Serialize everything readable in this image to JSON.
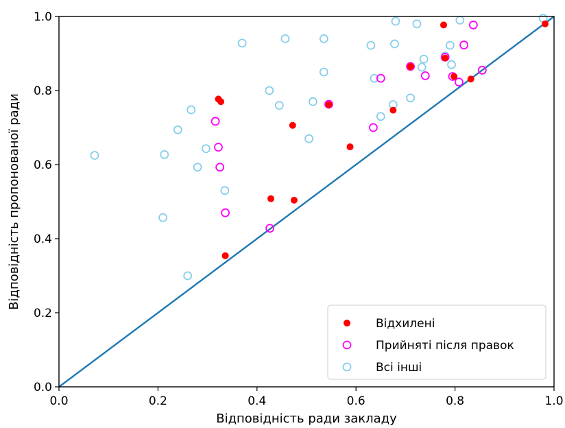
{
  "chart_data": {
    "type": "scatter",
    "title": "",
    "xlabel": "Відповідність ради закладу",
    "ylabel": "Відповідність пропонованої ради",
    "xlim": [
      0.0,
      1.0
    ],
    "ylim": [
      0.0,
      1.0
    ],
    "xticks": [
      "0.0",
      "0.2",
      "0.4",
      "0.6",
      "0.8",
      "1.0"
    ],
    "yticks": [
      "0.0",
      "0.2",
      "0.4",
      "0.6",
      "0.8",
      "1.0"
    ],
    "grid": false,
    "legend_position": "bottom-right",
    "reference_line": {
      "x": [
        0.0,
        1.0
      ],
      "y": [
        0.0,
        1.0
      ],
      "color": "#1f77b4"
    },
    "series": [
      {
        "name": "Всі інші",
        "marker": "hollow-circle",
        "color": "#87ceeb",
        "points": [
          [
            0.072,
            0.625
          ],
          [
            0.21,
            0.457
          ],
          [
            0.213,
            0.627
          ],
          [
            0.24,
            0.694
          ],
          [
            0.26,
            0.3
          ],
          [
            0.267,
            0.748
          ],
          [
            0.28,
            0.593
          ],
          [
            0.297,
            0.643
          ],
          [
            0.335,
            0.53
          ],
          [
            0.37,
            0.928
          ],
          [
            0.425,
            0.8
          ],
          [
            0.445,
            0.76
          ],
          [
            0.457,
            0.94
          ],
          [
            0.505,
            0.67
          ],
          [
            0.513,
            0.77
          ],
          [
            0.535,
            0.94
          ],
          [
            0.535,
            0.85
          ],
          [
            0.63,
            0.922
          ],
          [
            0.637,
            0.833
          ],
          [
            0.65,
            0.73
          ],
          [
            0.675,
            0.762
          ],
          [
            0.678,
            0.926
          ],
          [
            0.68,
            0.987
          ],
          [
            0.71,
            0.78
          ],
          [
            0.723,
            0.98
          ],
          [
            0.733,
            0.863
          ],
          [
            0.737,
            0.885
          ],
          [
            0.78,
            0.893
          ],
          [
            0.79,
            0.922
          ],
          [
            0.793,
            0.87
          ],
          [
            0.81,
            0.99
          ],
          [
            0.855,
            0.855
          ],
          [
            0.978,
            0.995
          ]
        ]
      },
      {
        "name": "Прийняті після правок",
        "marker": "hollow-circle",
        "color": "#ff00ff",
        "points": [
          [
            0.316,
            0.717
          ],
          [
            0.322,
            0.647
          ],
          [
            0.325,
            0.593
          ],
          [
            0.336,
            0.47
          ],
          [
            0.426,
            0.428
          ],
          [
            0.545,
            0.763
          ],
          [
            0.635,
            0.7
          ],
          [
            0.65,
            0.833
          ],
          [
            0.71,
            0.865
          ],
          [
            0.74,
            0.84
          ],
          [
            0.78,
            0.89
          ],
          [
            0.795,
            0.838
          ],
          [
            0.808,
            0.823
          ],
          [
            0.818,
            0.923
          ],
          [
            0.837,
            0.977
          ],
          [
            0.855,
            0.855
          ]
        ]
      },
      {
        "name": "Відхилені",
        "marker": "filled-circle",
        "color": "#ff0000",
        "points": [
          [
            0.322,
            0.777
          ],
          [
            0.327,
            0.77
          ],
          [
            0.336,
            0.354
          ],
          [
            0.428,
            0.508
          ],
          [
            0.472,
            0.706
          ],
          [
            0.475,
            0.504
          ],
          [
            0.545,
            0.762
          ],
          [
            0.588,
            0.648
          ],
          [
            0.675,
            0.747
          ],
          [
            0.71,
            0.865
          ],
          [
            0.777,
            0.977
          ],
          [
            0.78,
            0.888
          ],
          [
            0.798,
            0.838
          ],
          [
            0.832,
            0.831
          ],
          [
            0.982,
            0.98
          ]
        ]
      }
    ],
    "legend": [
      {
        "label": "Відхилені",
        "marker": "filled-circle",
        "color": "#ff0000"
      },
      {
        "label": "Прийняті після правок",
        "marker": "hollow-circle",
        "color": "#ff00ff"
      },
      {
        "label": "Всі інші",
        "marker": "hollow-circle",
        "color": "#87ceeb"
      }
    ]
  }
}
